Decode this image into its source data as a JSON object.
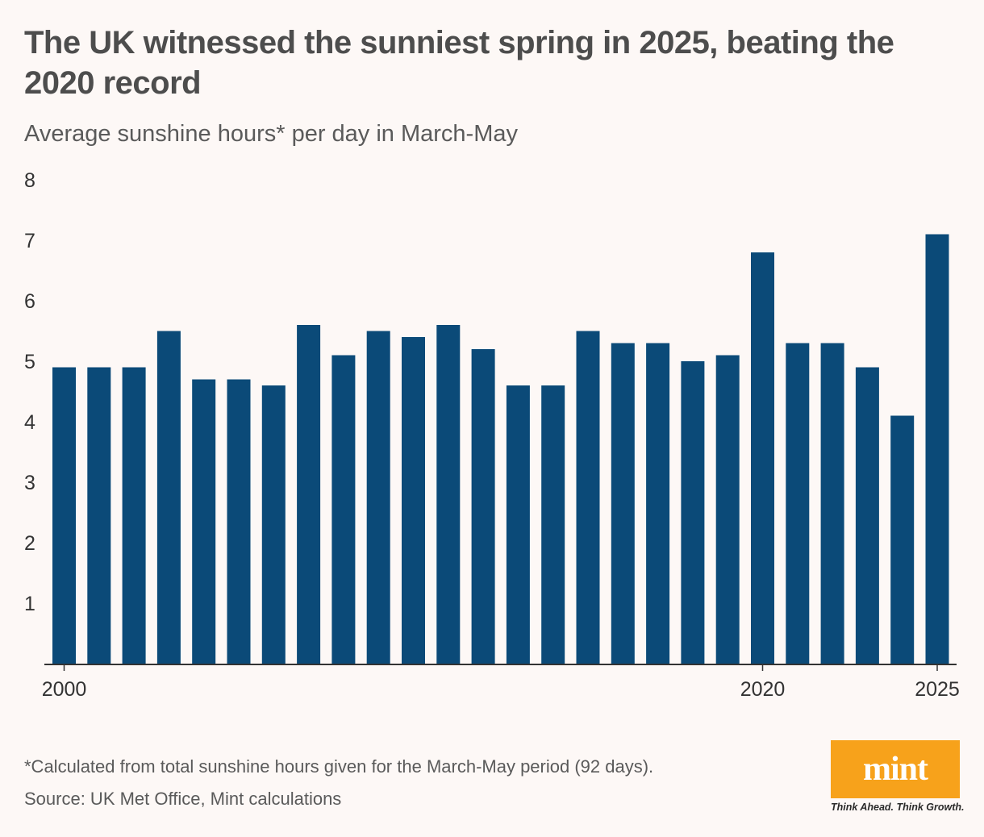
{
  "title": "The UK witnessed the sunniest spring in 2025, beating the 2020 record",
  "subtitle": "Average sunshine hours* per day in March-May",
  "footnote": "*Calculated from total sunshine hours given for the March-May period (92 days).",
  "source": "Source: UK Met Office, Mint calculations",
  "logo": {
    "word": "mint",
    "tagline": "Think Ahead. Think Growth."
  },
  "colors": {
    "bar": "#0b4a78",
    "axis": "#333333",
    "logo_bg": "#f7a21b",
    "background": "#fdf8f6"
  },
  "chart_data": {
    "type": "bar",
    "categories": [
      "2000",
      "2001",
      "2002",
      "2003",
      "2004",
      "2005",
      "2006",
      "2007",
      "2008",
      "2009",
      "2010",
      "2011",
      "2012",
      "2013",
      "2014",
      "2015",
      "2016",
      "2017",
      "2018",
      "2019",
      "2020",
      "2021",
      "2022",
      "2023",
      "2024",
      "2025"
    ],
    "values": [
      4.9,
      4.9,
      4.9,
      5.5,
      4.7,
      4.7,
      4.6,
      5.6,
      5.1,
      5.5,
      5.4,
      5.6,
      5.2,
      4.6,
      4.6,
      5.5,
      5.3,
      5.3,
      5.0,
      5.1,
      6.8,
      5.3,
      5.3,
      4.9,
      4.1,
      7.1
    ],
    "x_tick_labels": [
      "2000",
      "2020",
      "2025"
    ],
    "y_ticks": [
      1,
      2,
      3,
      4,
      5,
      6,
      7,
      8
    ],
    "ylim": [
      0,
      8
    ],
    "xlabel": "",
    "ylabel": "",
    "grid": false,
    "legend": "none"
  }
}
